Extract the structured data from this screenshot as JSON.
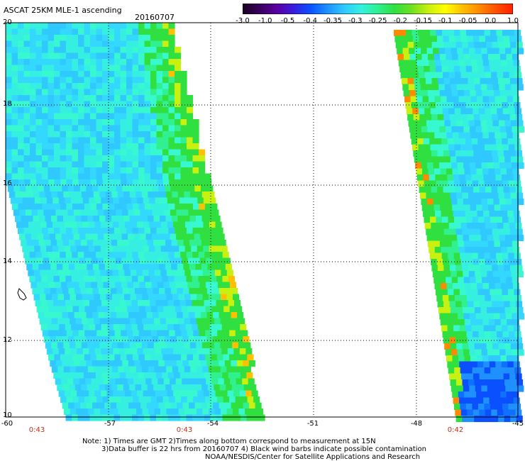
{
  "header": {
    "title": "ASCAT 25KM MLE-1 ascending",
    "date": "20160707"
  },
  "colorbar": {
    "labels": [
      "-3.0",
      "-1.0",
      "-0.5",
      "-0.4",
      "-0.35",
      "-0.3",
      "-0.25",
      "-0.2",
      "-0.15",
      "-0.1",
      "-0.05",
      "0.0",
      "1.0"
    ],
    "colors": [
      "#1a0024",
      "#3a005c",
      "#5a00a0",
      "#3a1cdc",
      "#0a50ff",
      "#1e90ff",
      "#2fc8ff",
      "#35f0e0",
      "#30f090",
      "#30e040",
      "#70e020",
      "#c8f010",
      "#ffff00",
      "#ffc000",
      "#ff8a00",
      "#ff5000",
      "#ff2000"
    ]
  },
  "map": {
    "lat_labels": [
      "20",
      "18",
      "16",
      "14",
      "12",
      "10"
    ],
    "lon_labels": [
      "-60",
      "-57",
      "-54",
      "-51",
      "-48",
      "-45"
    ],
    "pass_times": [
      "0:43",
      "0:43",
      "0:42"
    ]
  },
  "notes": {
    "line1": "Note: 1) Times are GMT 2)Times along bottom correspond to measurement at 15N",
    "line2": "3)Data buffer is 22 hrs from 20160707 4) Black wind barbs indicate possible contamination",
    "line3": "NOAA/NESDIS/Center for Satellite Applications and Research"
  }
}
